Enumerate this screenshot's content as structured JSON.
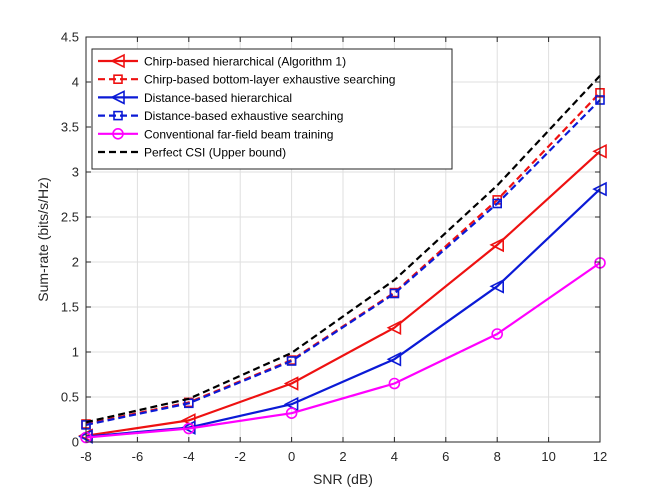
{
  "chart_data": {
    "type": "line",
    "xlabel": "SNR (dB)",
    "ylabel": "Sum-rate (bits/s/Hz)",
    "xlim": [
      -8,
      12
    ],
    "ylim": [
      0,
      4.5
    ],
    "xticks": [
      -8,
      -6,
      -4,
      -2,
      0,
      2,
      4,
      6,
      8,
      10,
      12
    ],
    "yticks": [
      0,
      0.5,
      1,
      1.5,
      2,
      2.5,
      3,
      3.5,
      4,
      4.5
    ],
    "grid": true,
    "legend_position": "top-left",
    "x": [
      -8,
      -4,
      0,
      4,
      8,
      12
    ],
    "series": [
      {
        "name": "Chirp-based hierarchical (Algorithm 1)",
        "values": [
          0.07,
          0.24,
          0.65,
          1.27,
          2.19,
          3.23
        ],
        "color": "#ee1111",
        "line": "solid",
        "marker": "triangle-left"
      },
      {
        "name": "Chirp-based bottom-layer exhaustive searching",
        "values": [
          0.2,
          0.44,
          0.91,
          1.66,
          2.69,
          3.88
        ],
        "color": "#ee1111",
        "line": "dashed",
        "marker": "square"
      },
      {
        "name": "Distance-based hierarchical",
        "values": [
          0.06,
          0.16,
          0.42,
          0.92,
          1.73,
          2.81
        ],
        "color": "#0b1ad6",
        "line": "solid",
        "marker": "triangle-left"
      },
      {
        "name": "Distance-based exhaustive searching",
        "values": [
          0.19,
          0.43,
          0.9,
          1.65,
          2.65,
          3.8
        ],
        "color": "#0b1ad6",
        "line": "dashed",
        "marker": "square"
      },
      {
        "name": "Conventional far-field beam training",
        "values": [
          0.05,
          0.15,
          0.32,
          0.65,
          1.2,
          1.99
        ],
        "color": "#ff00ff",
        "line": "solid",
        "marker": "circle"
      },
      {
        "name": "Perfect CSI (Upper bound)",
        "values": [
          0.22,
          0.48,
          0.99,
          1.8,
          2.85,
          4.07
        ],
        "color": "#000000",
        "line": "dashed",
        "marker": "none"
      }
    ]
  }
}
